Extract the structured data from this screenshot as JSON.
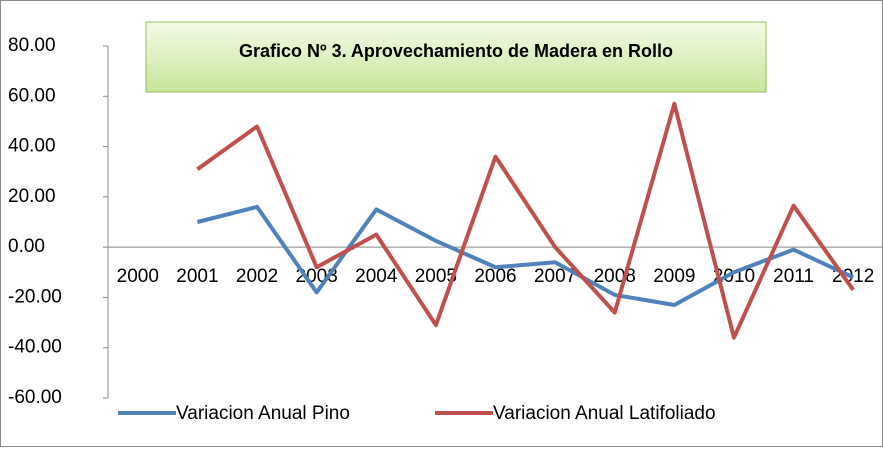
{
  "chart_data": {
    "type": "line",
    "title": "Grafico Nº 3. Aprovechamiento de Madera en Rollo",
    "categories": [
      "2000",
      "2001",
      "2002",
      "2003",
      "2004",
      "2005",
      "2006",
      "2007",
      "2008",
      "2009",
      "2010",
      "2011",
      "2012"
    ],
    "series": [
      {
        "name": "Variacion Anual Pino",
        "color": "#4f81bd",
        "values": [
          null,
          10,
          16,
          -18,
          15,
          2.5,
          -8,
          -6,
          -19,
          -23,
          -10,
          -1,
          -12
        ]
      },
      {
        "name": "Variacion Anual Latifoliado",
        "color": "#c0504d",
        "values": [
          null,
          31,
          48,
          -8,
          5,
          -31,
          36,
          0,
          -26,
          57,
          -36,
          16.5,
          -17
        ]
      }
    ],
    "ylim": [
      -60,
      80
    ],
    "yticks": [
      {
        "value": -60,
        "label": "-60.00"
      },
      {
        "value": -40,
        "label": "-40.00"
      },
      {
        "value": -20,
        "label": "-20.00"
      },
      {
        "value": 0,
        "label": "0.00"
      },
      {
        "value": 20,
        "label": "20.00"
      },
      {
        "value": 40,
        "label": "40.00"
      },
      {
        "value": 60,
        "label": "60.00"
      },
      {
        "value": 80,
        "label": "80.00"
      }
    ]
  }
}
